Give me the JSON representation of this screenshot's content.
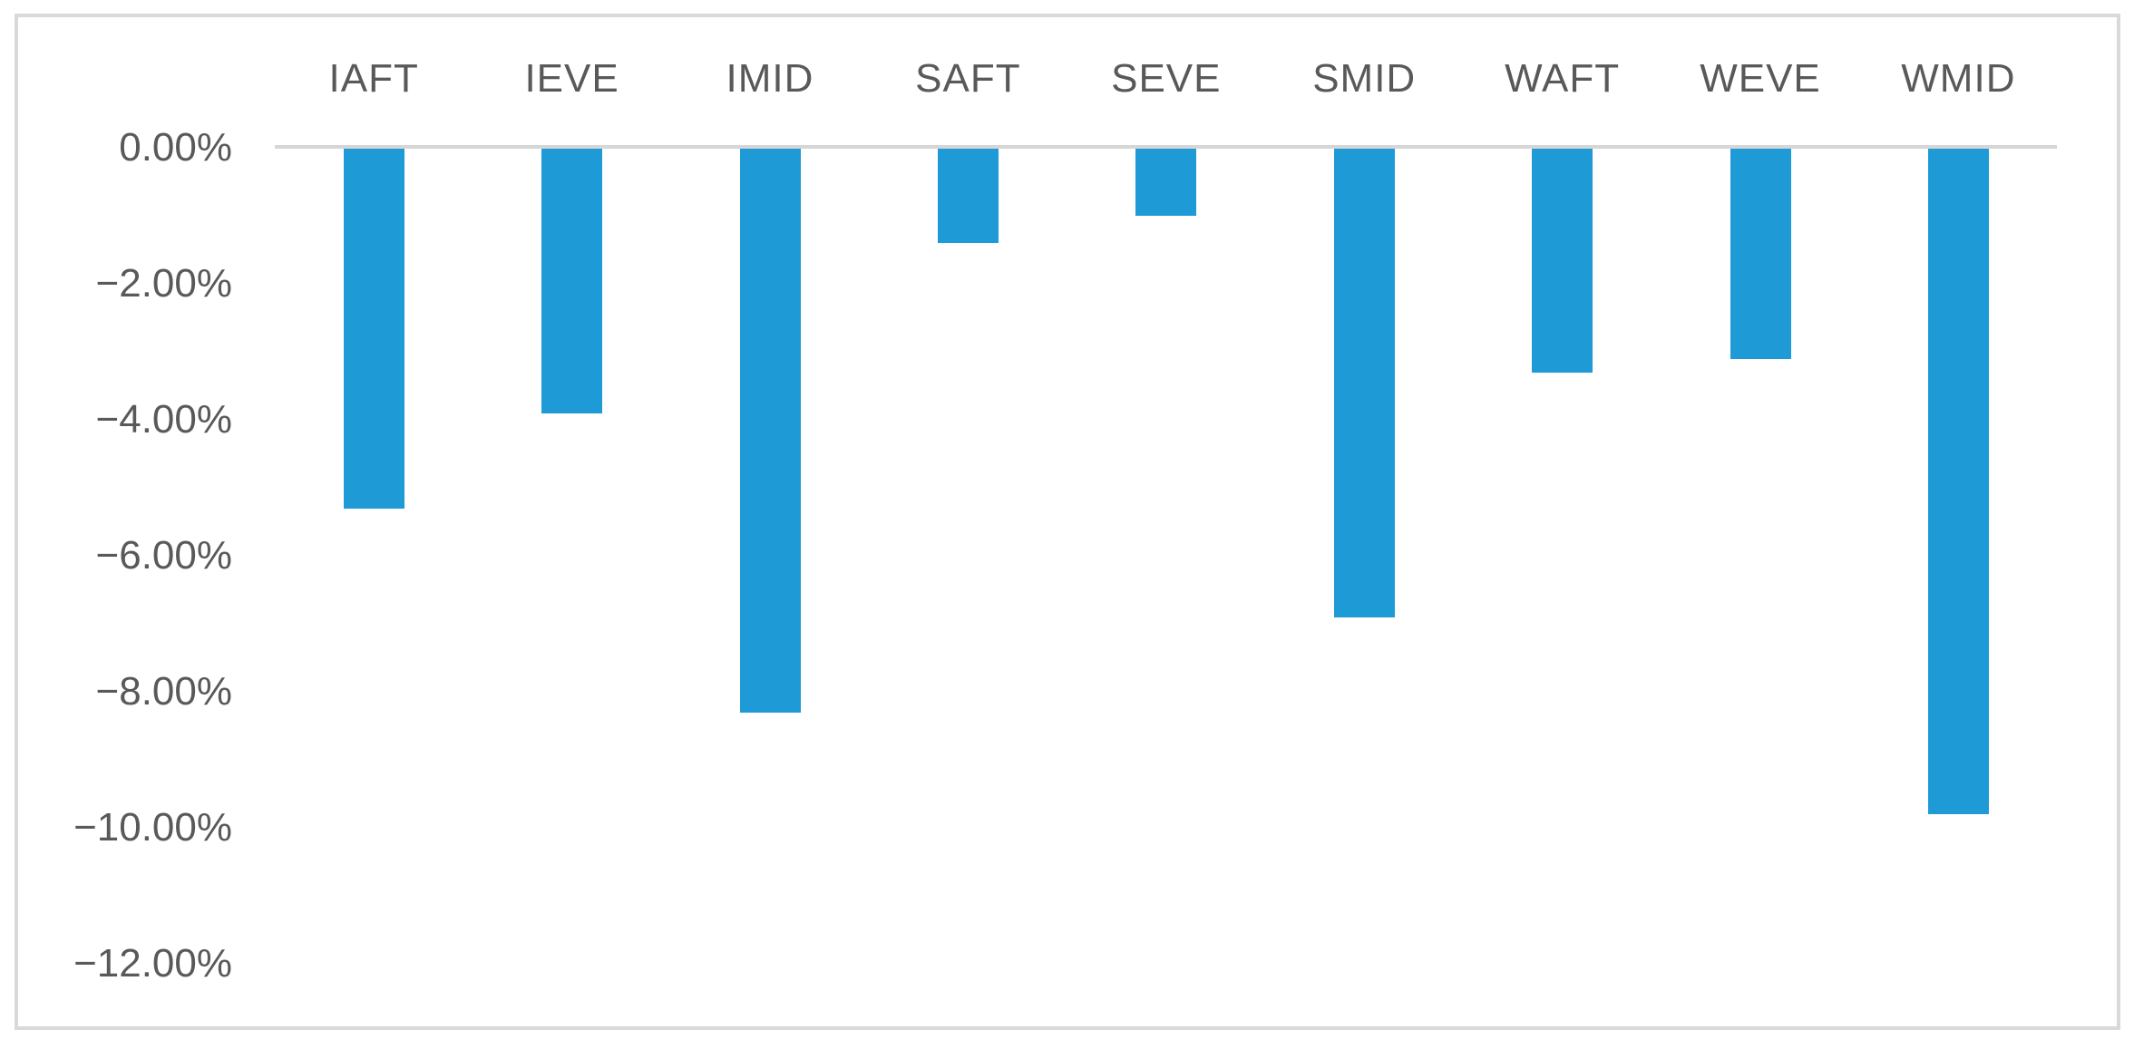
{
  "chart_data": {
    "type": "bar",
    "title": "",
    "xlabel": "",
    "ylabel": "",
    "categories": [
      "IAFT",
      "IEVE",
      "IMID",
      "SAFT",
      "SEVE",
      "SMID",
      "WAFT",
      "WEVE",
      "WMID"
    ],
    "values": [
      -5.3,
      -3.9,
      -8.3,
      -1.4,
      -1.0,
      -6.9,
      -3.3,
      -3.1,
      -9.8
    ],
    "value_unit": "%",
    "ylim": [
      -12,
      0
    ],
    "y_ticks": [
      {
        "label": "0.00%",
        "value": 0
      },
      {
        "label": "−2.00%",
        "value": -2
      },
      {
        "label": "−4.00%",
        "value": -4
      },
      {
        "label": "−6.00%",
        "value": -6
      },
      {
        "label": "−8.00%",
        "value": -8
      },
      {
        "label": "−10.00%",
        "value": -10
      },
      {
        "label": "−12.00%",
        "value": -12
      }
    ],
    "grid": false,
    "legend": null,
    "category_axis_position": "top",
    "bar_color": "#1E9BD7",
    "axis_line_color": "#D6D6D6",
    "frame_border_color": "#D9D9D9",
    "text_color": "#595959"
  }
}
